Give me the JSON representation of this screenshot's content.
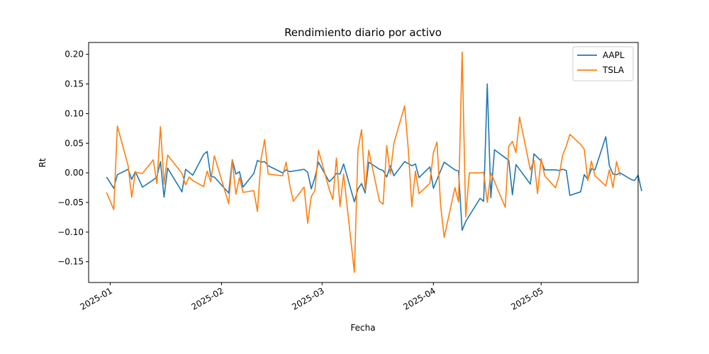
{
  "chart_data": {
    "type": "line",
    "title": "Rendimiento diario por activo",
    "xlabel": "Fecha",
    "ylabel": "Rt",
    "x_tick_labels": [
      "2025-01",
      "2025-02",
      "2025-03",
      "2025-04",
      "2025-05"
    ],
    "x_tick_dates": [
      "2025-01-01",
      "2025-02-01",
      "2025-03-01",
      "2025-04-01",
      "2025-05-01"
    ],
    "xlim": [
      "2024-12-26",
      "2025-05-28"
    ],
    "y_ticks": [
      -0.15,
      -0.1,
      -0.05,
      0.0,
      0.05,
      0.1,
      0.15,
      0.2
    ],
    "y_tick_labels": [
      "−0.15",
      "−0.10",
      "−0.05",
      "0.00",
      "0.05",
      "0.10",
      "0.15",
      "0.20"
    ],
    "ylim": [
      -0.185,
      0.22
    ],
    "grid": false,
    "legend_position": "top-right",
    "series": [
      {
        "name": "AAPL",
        "color": "#1f77b4",
        "points": [
          [
            "2024-12-31",
            -0.007
          ],
          [
            "2025-01-02",
            -0.026
          ],
          [
            "2025-01-03",
            -0.003
          ],
          [
            "2025-01-06",
            0.006
          ],
          [
            "2025-01-07",
            -0.011
          ],
          [
            "2025-01-08",
            0.002
          ],
          [
            "2025-01-10",
            -0.024
          ],
          [
            "2025-01-13",
            -0.012
          ],
          [
            "2025-01-14",
            -0.007
          ],
          [
            "2025-01-15",
            0.019
          ],
          [
            "2025-01-16",
            -0.041
          ],
          [
            "2025-01-17",
            0.008
          ],
          [
            "2025-01-21",
            -0.032
          ],
          [
            "2025-01-22",
            0.006
          ],
          [
            "2025-01-24",
            -0.004
          ],
          [
            "2025-01-27",
            0.031
          ],
          [
            "2025-01-28",
            0.036
          ],
          [
            "2025-01-29",
            -0.006
          ],
          [
            "2025-01-30",
            -0.007
          ],
          [
            "2025-02-03",
            -0.034
          ],
          [
            "2025-02-04",
            0.022
          ],
          [
            "2025-02-05",
            -0.002
          ],
          [
            "2025-02-06",
            0.002
          ],
          [
            "2025-02-07",
            -0.024
          ],
          [
            "2025-02-10",
            -0.001
          ],
          [
            "2025-02-11",
            0.021
          ],
          [
            "2025-02-12",
            0.018
          ],
          [
            "2025-02-13",
            0.019
          ],
          [
            "2025-02-14",
            0.012
          ],
          [
            "2025-02-18",
            0.0
          ],
          [
            "2025-02-19",
            0.005
          ],
          [
            "2025-02-20",
            0.002
          ],
          [
            "2025-02-24",
            0.006
          ],
          [
            "2025-02-25",
            0.001
          ],
          [
            "2025-02-26",
            -0.027
          ],
          [
            "2025-02-27",
            -0.008
          ],
          [
            "2025-02-28",
            0.018
          ],
          [
            "2025-03-03",
            -0.015
          ],
          [
            "2025-03-04",
            -0.009
          ],
          [
            "2025-03-05",
            -0.001
          ],
          [
            "2025-03-06",
            -0.002
          ],
          [
            "2025-03-07",
            0.015
          ],
          [
            "2025-03-10",
            -0.049
          ],
          [
            "2025-03-11",
            -0.027
          ],
          [
            "2025-03-12",
            -0.018
          ],
          [
            "2025-03-13",
            -0.034
          ],
          [
            "2025-03-14",
            0.018
          ],
          [
            "2025-03-17",
            0.006
          ],
          [
            "2025-03-18",
            0.004
          ],
          [
            "2025-03-19",
            -0.007
          ],
          [
            "2025-03-20",
            0.012
          ],
          [
            "2025-03-21",
            -0.005
          ],
          [
            "2025-03-24",
            0.019
          ],
          [
            "2025-03-26",
            0.012
          ],
          [
            "2025-03-27",
            0.015
          ],
          [
            "2025-03-28",
            -0.008
          ],
          [
            "2025-03-31",
            0.01
          ],
          [
            "2025-04-01",
            -0.026
          ],
          [
            "2025-04-04",
            0.018
          ],
          [
            "2025-04-07",
            0.005
          ],
          [
            "2025-04-08",
            0.003
          ],
          [
            "2025-04-09",
            -0.097
          ],
          [
            "2025-04-10",
            -0.082
          ],
          [
            "2025-04-14",
            -0.043
          ],
          [
            "2025-04-15",
            -0.048
          ],
          [
            "2025-04-16",
            0.15
          ],
          [
            "2025-04-17",
            -0.042
          ],
          [
            "2025-04-18",
            0.039
          ],
          [
            "2025-04-22",
            0.021
          ],
          [
            "2025-04-23",
            -0.037
          ],
          [
            "2025-04-24",
            0.014
          ],
          [
            "2025-04-28",
            -0.019
          ],
          [
            "2025-04-29",
            0.032
          ],
          [
            "2025-05-01",
            0.02
          ],
          [
            "2025-05-02",
            0.005
          ],
          [
            "2025-05-05",
            0.005
          ],
          [
            "2025-05-06",
            0.004
          ],
          [
            "2025-05-07",
            0.006
          ],
          [
            "2025-05-08",
            0.004
          ],
          [
            "2025-05-09",
            -0.038
          ],
          [
            "2025-05-12",
            -0.032
          ],
          [
            "2025-05-13",
            -0.003
          ],
          [
            "2025-05-14",
            -0.011
          ],
          [
            "2025-05-15",
            0.007
          ],
          [
            "2025-05-16",
            0.005
          ],
          [
            "2025-05-19",
            0.061
          ],
          [
            "2025-05-20",
            0.012
          ],
          [
            "2025-05-21",
            -0.002
          ],
          [
            "2025-05-22",
            -0.003
          ],
          [
            "2025-05-23",
            0.0
          ],
          [
            "2025-05-26",
            -0.011
          ],
          [
            "2025-05-27",
            -0.013
          ],
          [
            "2025-05-28",
            -0.004
          ],
          [
            "2025-05-29",
            -0.031
          ]
        ]
      },
      {
        "name": "TSLA",
        "color": "#ff7f0e",
        "points": [
          [
            "2024-12-31",
            -0.033
          ],
          [
            "2025-01-02",
            -0.062
          ],
          [
            "2025-01-03",
            0.079
          ],
          [
            "2025-01-06",
            0.012
          ],
          [
            "2025-01-07",
            -0.041
          ],
          [
            "2025-01-08",
            0.001
          ],
          [
            "2025-01-10",
            -0.001
          ],
          [
            "2025-01-13",
            0.022
          ],
          [
            "2025-01-14",
            -0.018
          ],
          [
            "2025-01-15",
            0.078
          ],
          [
            "2025-01-16",
            -0.019
          ],
          [
            "2025-01-17",
            0.03
          ],
          [
            "2025-01-21",
            -0.001
          ],
          [
            "2025-01-22",
            -0.02
          ],
          [
            "2025-01-23",
            -0.007
          ],
          [
            "2025-01-24",
            -0.013
          ],
          [
            "2025-01-27",
            -0.023
          ],
          [
            "2025-01-28",
            0.003
          ],
          [
            "2025-01-29",
            -0.015
          ],
          [
            "2025-01-30",
            0.029
          ],
          [
            "2025-02-03",
            -0.052
          ],
          [
            "2025-02-04",
            0.021
          ],
          [
            "2025-02-05",
            -0.036
          ],
          [
            "2025-02-06",
            -0.008
          ],
          [
            "2025-02-07",
            -0.033
          ],
          [
            "2025-02-10",
            -0.03
          ],
          [
            "2025-02-11",
            -0.065
          ],
          [
            "2025-02-12",
            0.023
          ],
          [
            "2025-02-13",
            0.056
          ],
          [
            "2025-02-14",
            -0.002
          ],
          [
            "2025-02-18",
            -0.005
          ],
          [
            "2025-02-19",
            0.018
          ],
          [
            "2025-02-20",
            -0.02
          ],
          [
            "2025-02-21",
            -0.048
          ],
          [
            "2025-02-24",
            -0.024
          ],
          [
            "2025-02-25",
            -0.085
          ],
          [
            "2025-02-26",
            -0.04
          ],
          [
            "2025-02-27",
            -0.03
          ],
          [
            "2025-02-28",
            0.038
          ],
          [
            "2025-03-03",
            -0.028
          ],
          [
            "2025-03-04",
            -0.045
          ],
          [
            "2025-03-05",
            0.025
          ],
          [
            "2025-03-06",
            -0.057
          ],
          [
            "2025-03-07",
            -0.002
          ],
          [
            "2025-03-10",
            -0.168
          ],
          [
            "2025-03-11",
            0.039
          ],
          [
            "2025-03-12",
            0.073
          ],
          [
            "2025-03-13",
            -0.03
          ],
          [
            "2025-03-14",
            0.038
          ],
          [
            "2025-03-17",
            -0.048
          ],
          [
            "2025-03-18",
            -0.053
          ],
          [
            "2025-03-19",
            0.046
          ],
          [
            "2025-03-20",
            -0.002
          ],
          [
            "2025-03-21",
            0.05
          ],
          [
            "2025-03-24",
            0.113
          ],
          [
            "2025-03-25",
            0.04
          ],
          [
            "2025-03-26",
            -0.057
          ],
          [
            "2025-03-27",
            0.003
          ],
          [
            "2025-03-28",
            -0.035
          ],
          [
            "2025-03-31",
            -0.018
          ],
          [
            "2025-04-01",
            0.034
          ],
          [
            "2025-04-02",
            0.052
          ],
          [
            "2025-04-03",
            -0.054
          ],
          [
            "2025-04-04",
            -0.109
          ],
          [
            "2025-04-07",
            -0.025
          ],
          [
            "2025-04-08",
            -0.049
          ],
          [
            "2025-04-09",
            0.204
          ],
          [
            "2025-04-10",
            -0.074
          ],
          [
            "2025-04-11",
            0.0
          ],
          [
            "2025-04-14",
            0.0
          ],
          [
            "2025-04-15",
            0.001
          ],
          [
            "2025-04-16",
            -0.05
          ],
          [
            "2025-04-17",
            0.0
          ],
          [
            "2025-04-21",
            -0.058
          ],
          [
            "2025-04-22",
            0.045
          ],
          [
            "2025-04-23",
            0.053
          ],
          [
            "2025-04-24",
            0.034
          ],
          [
            "2025-04-25",
            0.094
          ],
          [
            "2025-04-28",
            0.005
          ],
          [
            "2025-04-29",
            0.021
          ],
          [
            "2025-04-30",
            -0.035
          ],
          [
            "2025-05-01",
            0.024
          ],
          [
            "2025-05-02",
            -0.005
          ],
          [
            "2025-05-05",
            -0.025
          ],
          [
            "2025-05-06",
            -0.005
          ],
          [
            "2025-05-07",
            0.03
          ],
          [
            "2025-05-08",
            0.045
          ],
          [
            "2025-05-09",
            0.065
          ],
          [
            "2025-05-12",
            0.048
          ],
          [
            "2025-05-13",
            0.04
          ],
          [
            "2025-05-14",
            -0.013
          ],
          [
            "2025-05-15",
            0.02
          ],
          [
            "2025-05-16",
            -0.005
          ],
          [
            "2025-05-19",
            -0.022
          ],
          [
            "2025-05-20",
            0.005
          ],
          [
            "2025-05-21",
            -0.025
          ],
          [
            "2025-05-22",
            0.019
          ],
          [
            "2025-05-23",
            -0.005
          ]
        ]
      }
    ]
  }
}
